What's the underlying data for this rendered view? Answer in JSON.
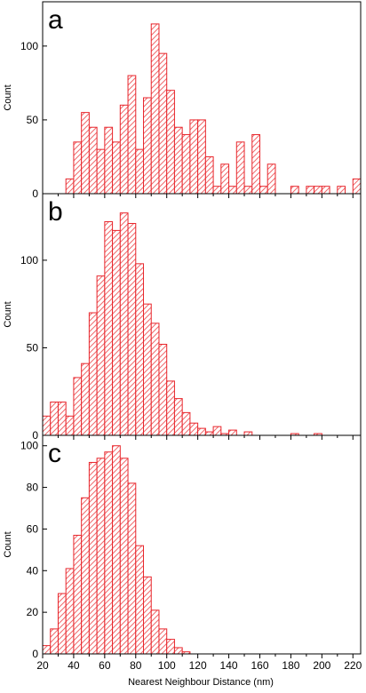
{
  "style": {
    "bar_stroke": "#e8262c",
    "hatch_color": "#f06b6e",
    "bar_fill_pattern": "diagonal-hatch"
  },
  "x_axis": {
    "label": "Nearest Neighbour Distance (nm)",
    "ticks": [
      20,
      40,
      60,
      80,
      100,
      120,
      140,
      160,
      180,
      200,
      220
    ],
    "xlim": [
      20,
      225
    ],
    "bin_width": 5
  },
  "chart_data": [
    {
      "type": "bar",
      "panel": "a",
      "ylabel": "Count",
      "ylim": [
        0,
        130
      ],
      "yticks": [
        0,
        50,
        100
      ],
      "bin_width": 5,
      "x": [
        35,
        40,
        45,
        50,
        55,
        60,
        65,
        70,
        75,
        80,
        85,
        90,
        95,
        100,
        105,
        110,
        115,
        120,
        125,
        130,
        135,
        140,
        145,
        150,
        155,
        160,
        165,
        170,
        175,
        180,
        185,
        190,
        195,
        200,
        205,
        210,
        215,
        220
      ],
      "values": [
        10,
        35,
        55,
        45,
        30,
        45,
        35,
        60,
        80,
        30,
        65,
        115,
        95,
        70,
        45,
        40,
        50,
        50,
        25,
        5,
        20,
        5,
        35,
        5,
        40,
        5,
        20,
        0,
        0,
        5,
        0,
        5,
        5,
        5,
        0,
        5,
        0,
        10
      ]
    },
    {
      "type": "bar",
      "panel": "b",
      "ylabel": "Count",
      "ylim": [
        0,
        138
      ],
      "yticks": [
        0,
        50,
        100
      ],
      "bin_width": 5,
      "x": [
        20,
        25,
        30,
        35,
        40,
        45,
        50,
        55,
        60,
        65,
        70,
        75,
        80,
        85,
        90,
        95,
        100,
        105,
        110,
        115,
        120,
        125,
        130,
        135,
        140,
        145,
        150,
        155,
        160,
        165,
        170,
        175,
        180,
        185,
        190,
        195
      ],
      "values": [
        11,
        19,
        19,
        11,
        33,
        41,
        70,
        91,
        122,
        117,
        127,
        121,
        98,
        75,
        64,
        52,
        31,
        21,
        13,
        7,
        4,
        2,
        5,
        1,
        3,
        0,
        2,
        0,
        0,
        0,
        0,
        0,
        1,
        0,
        0,
        1
      ]
    },
    {
      "type": "bar",
      "panel": "c",
      "ylabel": "Count",
      "ylim": [
        0,
        105
      ],
      "yticks": [
        0,
        20,
        40,
        60,
        80,
        100
      ],
      "bin_width": 5,
      "x": [
        20,
        25,
        30,
        35,
        40,
        45,
        50,
        55,
        60,
        65,
        70,
        75,
        80,
        85,
        90,
        95,
        100,
        105,
        110
      ],
      "values": [
        4,
        12,
        29,
        41,
        57,
        75,
        92,
        94,
        97,
        100,
        94,
        82,
        52,
        37,
        21,
        12,
        7,
        3,
        1
      ]
    }
  ]
}
